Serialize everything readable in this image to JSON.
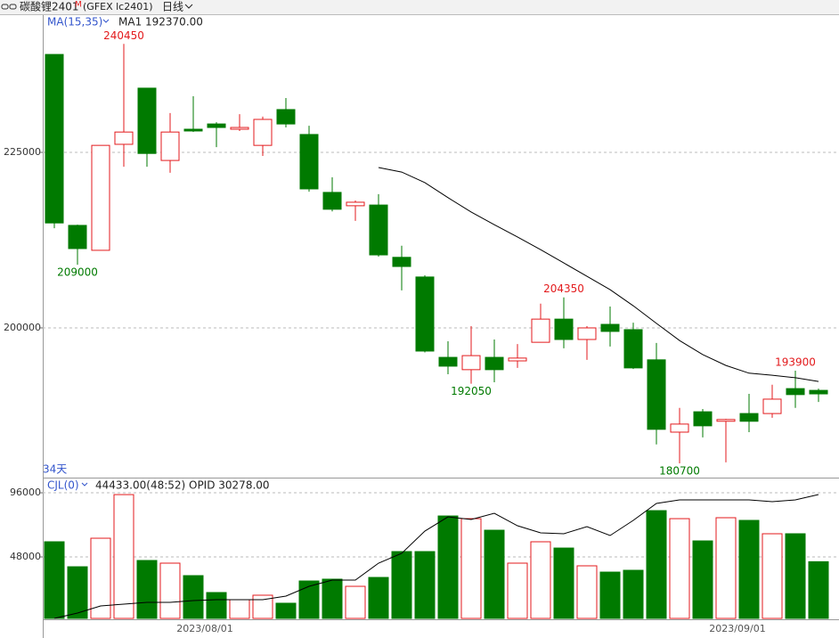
{
  "header": {
    "symbol": "碳酸锂2401",
    "mark": "M",
    "code": "(GFEX lc2401)",
    "period": "日线"
  },
  "chart_data": [
    {
      "type": "candlestick",
      "indicator": "MA(15,35)",
      "bar_count": "34天",
      "open": [
        238950,
        214600,
        211050,
        226150,
        234150,
        223850,
        228300,
        229050,
        228300,
        226000,
        231100,
        227550,
        219300,
        217400,
        217500,
        210050,
        207250,
        195800,
        194050,
        195800,
        195300,
        197950,
        201250,
        198350,
        200500,
        199750,
        195450,
        185150,
        188050,
        186700,
        187800,
        187800,
        191350,
        191100
      ],
      "high": [
        238950,
        214700,
        226000,
        240450,
        234150,
        230600,
        233000,
        229300,
        230450,
        230100,
        232750,
        228800,
        221450,
        218150,
        219050,
        211700,
        207500,
        198100,
        200250,
        198350,
        197700,
        203450,
        204350,
        200250,
        203050,
        200750,
        197850,
        188600,
        188450,
        187050,
        190600,
        191900,
        193900,
        191350
      ],
      "low": [
        214200,
        209000,
        211050,
        222950,
        222950,
        222100,
        227900,
        225750,
        228050,
        224500,
        228550,
        219400,
        216600,
        215250,
        210150,
        205350,
        196500,
        193400,
        192050,
        192250,
        194300,
        197950,
        197100,
        195450,
        197350,
        194150,
        183400,
        180700,
        184400,
        180850,
        185150,
        187200,
        188600,
        189450
      ],
      "close": [
        214950,
        211300,
        226000,
        227900,
        224850,
        227900,
        228050,
        228550,
        228550,
        229700,
        229050,
        219800,
        216900,
        217900,
        210400,
        208750,
        196700,
        194550,
        196050,
        194050,
        195700,
        201250,
        198350,
        200000,
        199500,
        194300,
        185550,
        186300,
        186050,
        186950,
        186700,
        189850,
        190500,
        190600
      ],
      "up_color": "#e31a1c",
      "down_color": "#007a00",
      "series": [
        {
          "label": "MA1 192370.00",
          "color": "#000000",
          "values": [
            null,
            null,
            null,
            null,
            null,
            null,
            null,
            null,
            null,
            null,
            null,
            null,
            null,
            null,
            222850,
            222200,
            220700,
            218550,
            216500,
            214700,
            212950,
            211150,
            209250,
            207350,
            205450,
            203150,
            200650,
            198200,
            196200,
            194650,
            193550,
            193250,
            192900,
            192370
          ]
        }
      ],
      "ylim": [
        178800,
        244550
      ],
      "yticks": [
        200000,
        225000
      ],
      "grid": true
    },
    {
      "type": "bar",
      "indicator": "CJL(0)",
      "volume_label": "44433.00(48:52)",
      "categories": [
        null,
        null,
        null,
        null,
        null,
        null,
        null,
        "2023/08/01",
        null,
        null,
        null,
        null,
        null,
        null,
        null,
        null,
        null,
        null,
        null,
        null,
        null,
        null,
        null,
        null,
        null,
        null,
        null,
        null,
        null,
        null,
        "2023/09/01",
        null,
        null,
        null
      ],
      "values": [
        59350,
        40650,
        62000,
        94650,
        45350,
        43350,
        34000,
        21350,
        16000,
        19350,
        13350,
        30000,
        31350,
        26000,
        32650,
        52000,
        52000,
        78650,
        76650,
        68000,
        43350,
        59350,
        54650,
        41350,
        36650,
        38000,
        82650,
        76650,
        60000,
        77350,
        75350,
        65350,
        65350,
        44433
      ],
      "ylim": [
        2000,
        106700
      ],
      "yticks": [
        48000,
        96000
      ],
      "grid": true,
      "series": [
        {
          "label": "OPID 30278.00",
          "color": "#000000",
          "axis": "y2",
          "values": [
            0,
            1300,
            3050,
            3480,
            3920,
            3920,
            4360,
            4570,
            4570,
            4570,
            5450,
            7840,
            9370,
            9370,
            13500,
            15900,
            21340,
            24830,
            24180,
            25700,
            22650,
            20910,
            20690,
            22430,
            20260,
            23960,
            28100,
            28970,
            28970,
            28970,
            28970,
            28530,
            28970,
            30278
          ]
        }
      ],
      "y2lim": [
        0,
        34200
      ]
    }
  ]
}
